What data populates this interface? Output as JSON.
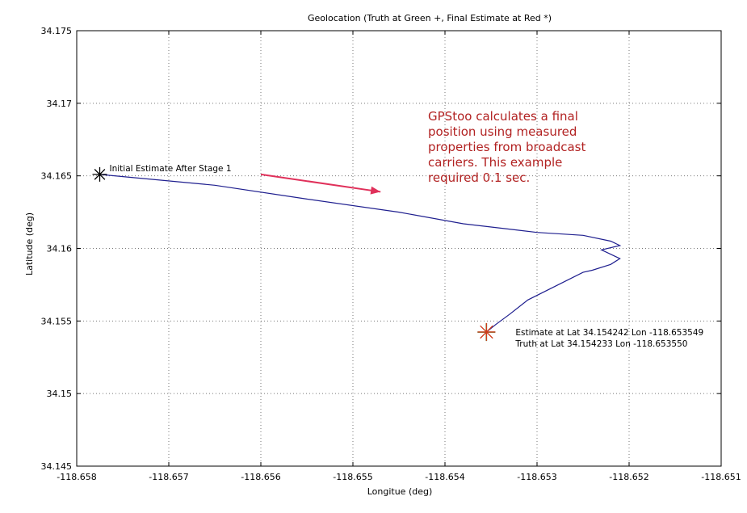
{
  "chart_data": {
    "type": "line",
    "title": "Geolocation (Truth at Green +, Final Estimate at Red *)",
    "xlabel": "Longitue (deg)",
    "ylabel": "Latitude (deg)",
    "xlim": [
      -118.658,
      -118.651
    ],
    "ylim": [
      34.145,
      34.175
    ],
    "xticks": [
      -118.658,
      -118.657,
      -118.656,
      -118.655,
      -118.654,
      -118.653,
      -118.652,
      -118.651
    ],
    "xtick_labels": [
      "-118.658",
      "-118.657",
      "-118.656",
      "-118.655",
      "-118.654",
      "-118.653",
      "-118.652",
      "-118.651"
    ],
    "yticks": [
      34.145,
      34.15,
      34.155,
      34.16,
      34.165,
      34.17,
      34.175
    ],
    "ytick_labels": [
      "34.145",
      "34.15",
      "34.155",
      "34.16",
      "34.165",
      "34.17",
      "34.175"
    ],
    "grid": true,
    "series": [
      {
        "color": "#1f1f8f",
        "x": [
          -118.65775,
          -118.6565,
          -118.6555,
          -118.6545,
          -118.6538,
          -118.6532,
          -118.653,
          -118.6525,
          -118.6522,
          -118.6521,
          -118.6523,
          -118.6522,
          -118.6521,
          -118.6522,
          -118.6524,
          -118.6525,
          -118.6528,
          -118.6531,
          -118.6533,
          -118.65345,
          -118.65355
        ],
        "y": [
          34.1651,
          34.16435,
          34.1634,
          34.1625,
          34.1617,
          34.16125,
          34.1611,
          34.1609,
          34.1605,
          34.1602,
          34.1599,
          34.1596,
          34.1593,
          34.1589,
          34.1585,
          34.15835,
          34.1574,
          34.15645,
          34.15545,
          34.15475,
          34.15424
        ]
      }
    ],
    "markers": [
      {
        "name": "initial-estimate",
        "x": -118.65775,
        "y": 34.1651,
        "symbol": "*",
        "color": "#000000",
        "label": "Initial Estimate After Stage 1"
      },
      {
        "name": "truth",
        "x": -118.65355,
        "y": 34.154233,
        "symbol": "+",
        "color": "#2e8b2e"
      },
      {
        "name": "final-estimate",
        "x": -118.653549,
        "y": 34.154242,
        "symbol": "*",
        "color": "#d03a1a"
      }
    ],
    "annotations": {
      "estimate_text": "Estimate at Lat   34.154242 Lon -118.653549",
      "truth_text": "Truth at Lat   34.154233 Lon -118.653550",
      "callout_lines": [
        "GPStoo calculates a final",
        "position using measured",
        "properties from broadcast",
        "carriers.  This example",
        "required 0.1 sec."
      ],
      "callout_color": "#b22222",
      "arrow_color": "#e0305a",
      "arrow": {
        "from": [
          -118.656,
          34.1651
        ],
        "to": [
          -118.6547,
          34.1639
        ]
      }
    }
  }
}
